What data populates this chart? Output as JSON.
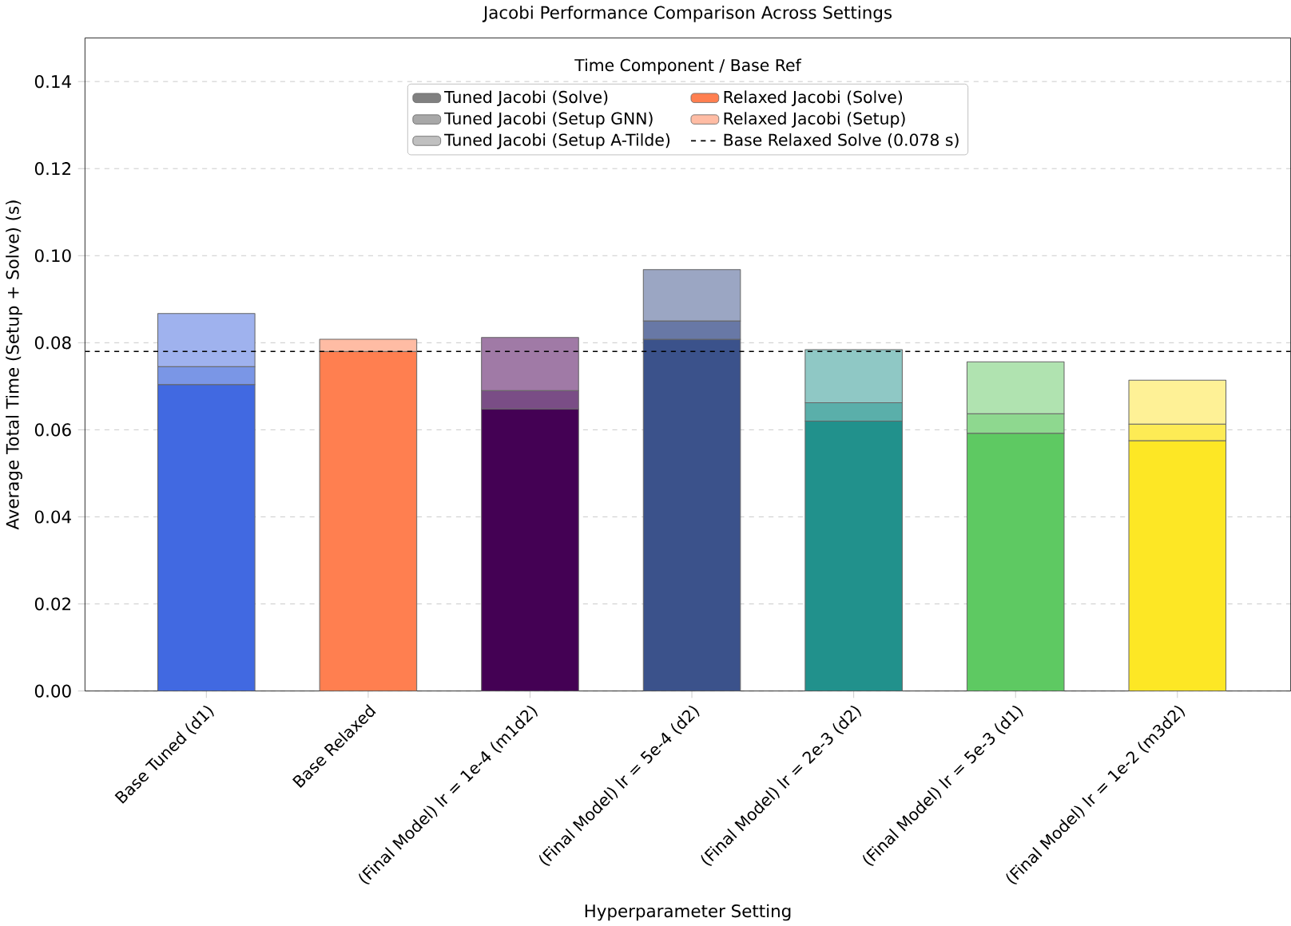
{
  "chart_data": {
    "type": "bar",
    "stacked": true,
    "title": "Jacobi Performance Comparison Across Settings",
    "xlabel": "Hyperparameter Setting",
    "ylabel": "Average Total Time (Setup + Solve) (s)",
    "legend_title": "Time Component / Base Ref",
    "categories": [
      "Base Tuned (d1)",
      "Base Relaxed",
      "(Final Model) lr = 1e-4 (m1d2)",
      "(Final Model) lr = 5e-4 (d2)",
      "(Final Model) lr = 2e-3 (d2)",
      "(Final Model) lr = 5e-3 (d1)",
      "(Final Model) lr = 1e-2 (m3d2)"
    ],
    "series": [
      {
        "name": "Tuned Jacobi (Solve)",
        "color": "#808080",
        "colors": [
          "#4169e1",
          null,
          "#440154",
          "#3b528b",
          "#21918c",
          "#5ec962",
          "#fde725"
        ],
        "values": [
          0.0704,
          null,
          0.0648,
          0.0808,
          0.062,
          0.0592,
          0.0575
        ]
      },
      {
        "name": "Tuned Jacobi (Setup GNN)",
        "color": "#a8a8a8",
        "colors": [
          "#7a96e6",
          null,
          "#7a4d86",
          "#6878a6",
          "#5aafaa",
          "#8ed88f",
          "#fdeb55"
        ],
        "values": [
          0.0041,
          null,
          0.0042,
          0.0042,
          0.0042,
          0.0045,
          0.0038
        ]
      },
      {
        "name": "Tuned Jacobi (Setup A-Tilde)",
        "color": "#c0c0c0",
        "colors": [
          "#9fb2ee",
          null,
          "#a07aa6",
          "#9ba6c3",
          "#8fc8c5",
          "#b0e3b0",
          "#fef196"
        ],
        "values": [
          0.0122,
          null,
          0.0122,
          0.0118,
          0.0122,
          0.0119,
          0.0101
        ]
      },
      {
        "name": "Relaxed Jacobi (Solve)",
        "color": "#ff7f50",
        "values": [
          null,
          0.078,
          null,
          null,
          null,
          null,
          null
        ]
      },
      {
        "name": "Relaxed Jacobi (Setup)",
        "color": "#ffbca4",
        "values": [
          null,
          0.0028,
          null,
          null,
          null,
          null,
          null
        ]
      }
    ],
    "ref_lines": [
      {
        "axis": "y",
        "value": 0.078,
        "label": "Base Relaxed Solve (0.078 s)",
        "color": "#000000",
        "line_style": "dashed"
      }
    ],
    "ylim": [
      0,
      0.15
    ],
    "yticks": [
      {
        "value": 0,
        "label": "0.00"
      },
      {
        "value": 0.02,
        "label": "0.02"
      },
      {
        "value": 0.04,
        "label": "0.04"
      },
      {
        "value": 0.06,
        "label": "0.06"
      },
      {
        "value": 0.08,
        "label": "0.08"
      },
      {
        "value": 0.1,
        "label": "0.10"
      },
      {
        "value": 0.12,
        "label": "0.12"
      },
      {
        "value": 0.14,
        "label": "0.14"
      }
    ],
    "grid": "y",
    "legend": "top"
  }
}
